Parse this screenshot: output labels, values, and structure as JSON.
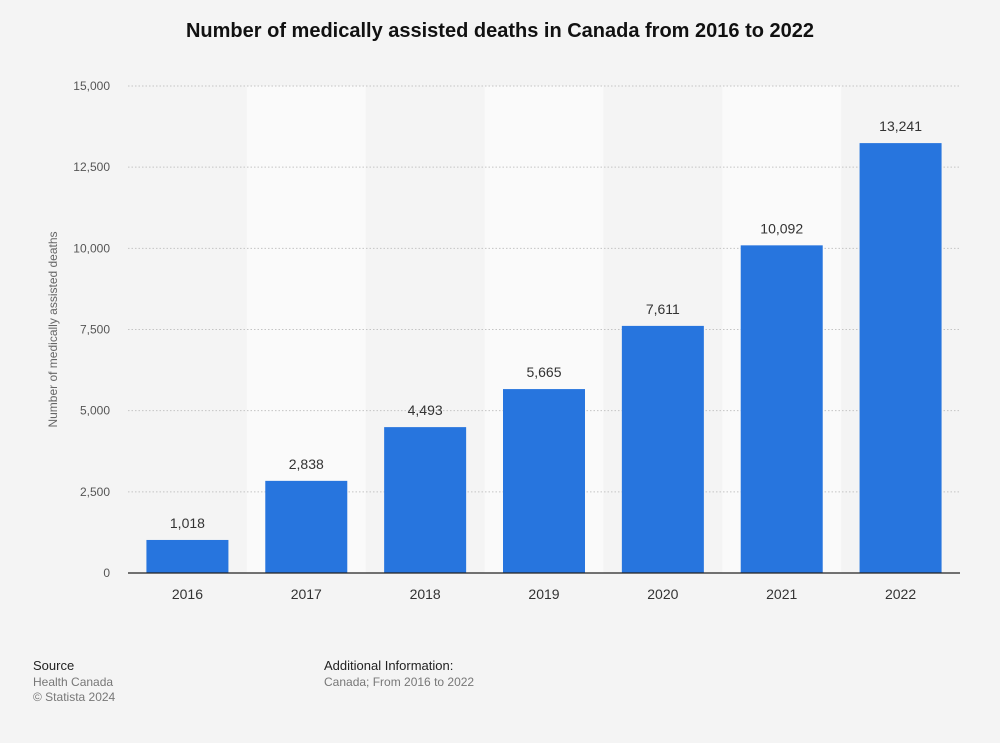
{
  "chart_data": {
    "type": "bar",
    "title": "Number of medically assisted deaths in Canada from 2016 to 2022",
    "xlabel": "",
    "ylabel": "Number of medically assisted deaths",
    "categories": [
      "2016",
      "2017",
      "2018",
      "2019",
      "2020",
      "2021",
      "2022"
    ],
    "values": [
      1018,
      2838,
      4493,
      5665,
      7611,
      10092,
      13241
    ],
    "value_labels": [
      "1,018",
      "2,838",
      "4,493",
      "5,665",
      "7,611",
      "10,092",
      "13,241"
    ],
    "ylim": [
      0,
      15000
    ],
    "yticks": [
      0,
      2500,
      5000,
      7500,
      10000,
      12500,
      15000
    ],
    "ytick_labels": [
      "0",
      "2,500",
      "5,000",
      "7,500",
      "10,000",
      "12,500",
      "15,000"
    ],
    "grid": true,
    "legend": "none",
    "bar_color": "#2775de"
  },
  "footer": {
    "source_heading": "Source",
    "source_lines": [
      "Health Canada",
      "© Statista 2024"
    ],
    "info_heading": "Additional Information:",
    "info_text": "Canada; From 2016 to 2022"
  }
}
